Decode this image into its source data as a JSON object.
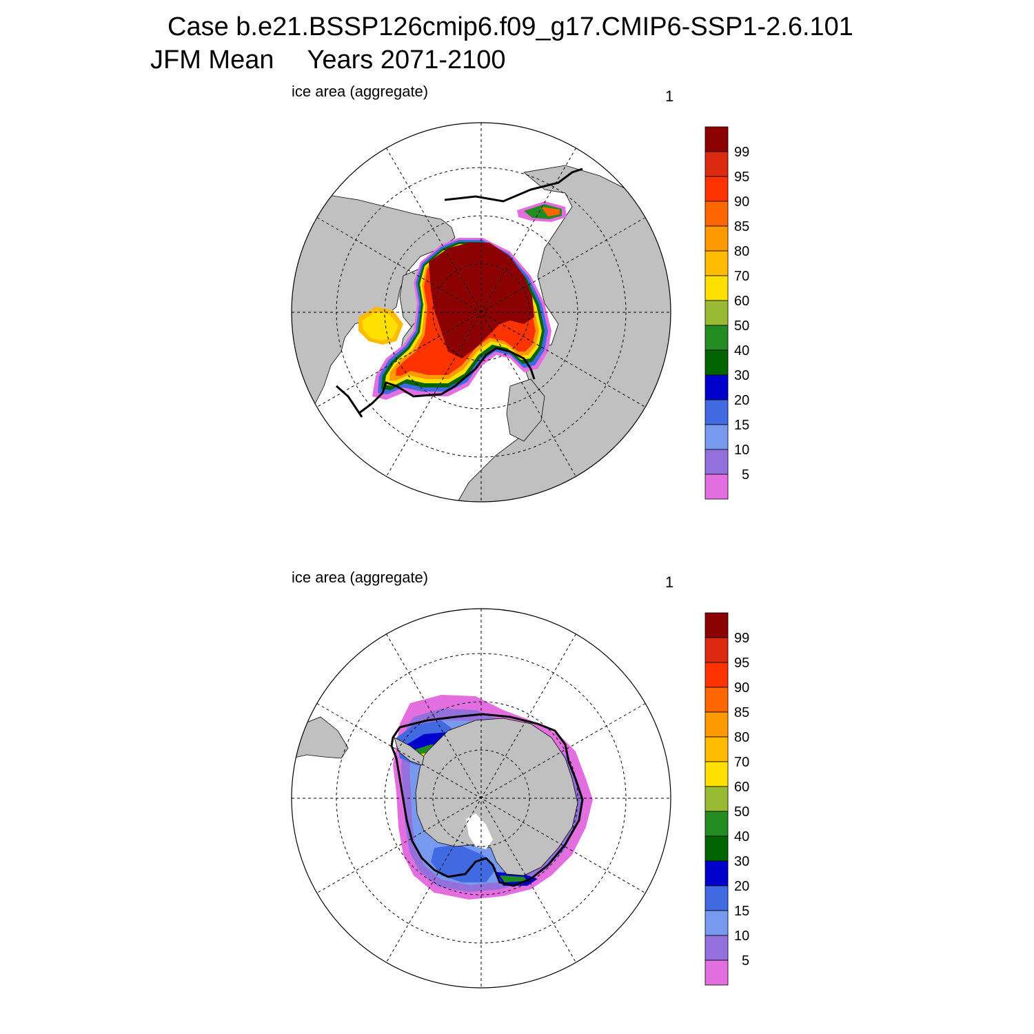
{
  "title": {
    "case": "Case b.e21.BSSP126cmip6.f09_g17.CMIP6-SSP1-2.6.101",
    "season": "JFM Mean",
    "years": "Years 2071-2100"
  },
  "panels": [
    {
      "id": "north",
      "label": "ice area  (aggregate)",
      "corner_number": "1"
    },
    {
      "id": "south",
      "label": "ice area  (aggregate)",
      "corner_number": "1"
    }
  ],
  "colorbar": {
    "levels": [
      "99",
      "95",
      "90",
      "85",
      "80",
      "70",
      "60",
      "50",
      "40",
      "30",
      "20",
      "15",
      "10",
      "5"
    ],
    "colors": [
      "#8b0000",
      "#dc2a10",
      "#ff3300",
      "#ff6600",
      "#ff9900",
      "#ffbb00",
      "#ffe000",
      "#99bb33",
      "#228b22",
      "#006400",
      "#0000cd",
      "#4169e1",
      "#7799ee",
      "#9370db",
      "#e36ee0"
    ]
  },
  "land_color": "#c0c0c0"
}
